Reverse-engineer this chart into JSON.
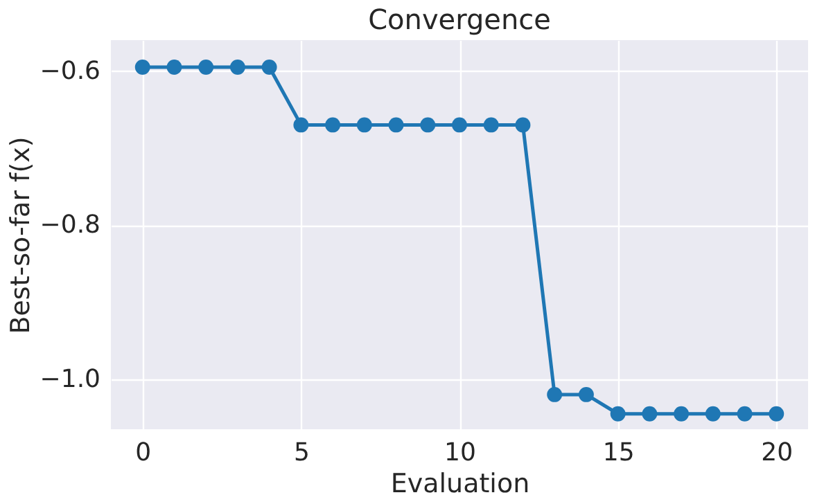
{
  "chart_data": {
    "type": "line",
    "title": "Convergence",
    "xlabel": "Evaluation",
    "ylabel": "Best-so-far f(x)",
    "x": [
      0,
      1,
      2,
      3,
      4,
      5,
      6,
      7,
      8,
      9,
      10,
      11,
      12,
      13,
      14,
      15,
      16,
      17,
      18,
      19,
      20
    ],
    "series": [
      {
        "color": "#1f77b4",
        "values": [
          -0.595,
          -0.595,
          -0.595,
          -0.595,
          -0.595,
          -0.67,
          -0.67,
          -0.67,
          -0.67,
          -0.67,
          -0.67,
          -0.67,
          -0.67,
          -1.02,
          -1.02,
          -1.045,
          -1.045,
          -1.045,
          -1.045,
          -1.045,
          -1.045
        ]
      }
    ],
    "xlim": [
      -1,
      21
    ],
    "xticks": [
      0,
      5,
      10,
      15,
      20
    ],
    "ylim": [
      -1.065,
      -0.56
    ],
    "yticks": [
      {
        "value": -0.6,
        "label": "−0.6"
      },
      {
        "value": -0.8,
        "label": "−0.8"
      },
      {
        "value": -1.0,
        "label": "−1.0"
      }
    ],
    "grid": true,
    "marker": "circle",
    "line_style": "solid"
  }
}
